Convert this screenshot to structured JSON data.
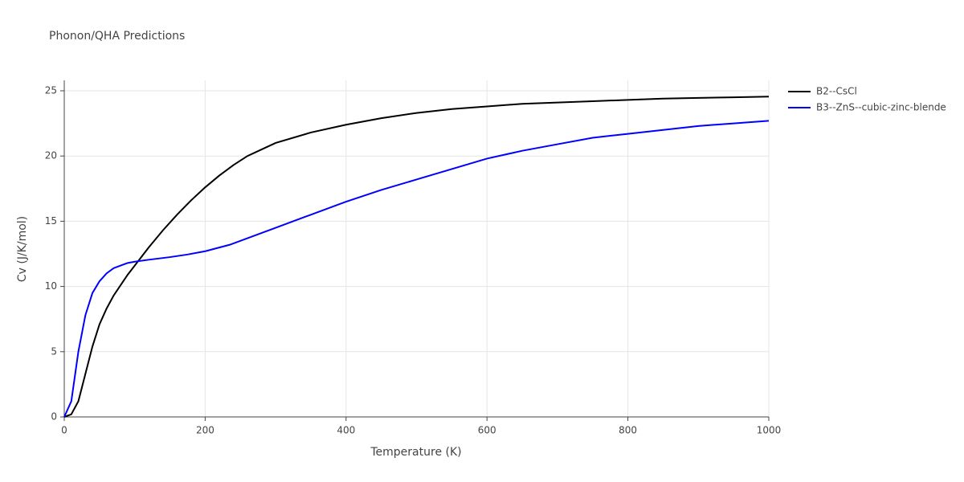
{
  "chart_data": {
    "type": "line",
    "title": "Phonon/QHA Predictions",
    "x_label": "Temperature (K)",
    "y_label": "Cv (J/K/mol)",
    "xlim": [
      0,
      1000
    ],
    "ylim": [
      0,
      25.8
    ],
    "xticks": [
      0,
      200,
      400,
      600,
      800,
      1000
    ],
    "yticks": [
      0,
      5,
      10,
      15,
      20,
      25
    ],
    "grid": true,
    "legend": "right",
    "series": [
      {
        "name": "B2--CsCl",
        "color": "#000000",
        "x": [
          0,
          10,
          20,
          30,
          40,
          50,
          60,
          70,
          80,
          90,
          100,
          120,
          140,
          160,
          180,
          200,
          220,
          240,
          260,
          280,
          300,
          350,
          400,
          450,
          500,
          550,
          600,
          650,
          700,
          750,
          800,
          850,
          900,
          950,
          1000
        ],
        "values": [
          0,
          0.2,
          1.2,
          3.3,
          5.4,
          7.1,
          8.3,
          9.3,
          10.1,
          10.9,
          11.6,
          13.0,
          14.3,
          15.5,
          16.6,
          17.6,
          18.5,
          19.3,
          20.0,
          20.5,
          21.0,
          21.8,
          22.4,
          22.9,
          23.3,
          23.6,
          23.8,
          24.0,
          24.1,
          24.2,
          24.3,
          24.4,
          24.45,
          24.5,
          24.55
        ]
      },
      {
        "name": "B3--ZnS--cubic-zinc-blende",
        "color": "#0000ff",
        "x": [
          0,
          10,
          20,
          30,
          40,
          50,
          60,
          70,
          80,
          90,
          100,
          120,
          150,
          175,
          200,
          235,
          270,
          300,
          350,
          400,
          450,
          500,
          550,
          600,
          650,
          700,
          750,
          800,
          850,
          900,
          950,
          1000
        ],
        "values": [
          0,
          1.2,
          5.0,
          7.8,
          9.5,
          10.4,
          11.0,
          11.4,
          11.6,
          11.8,
          11.9,
          12.05,
          12.25,
          12.45,
          12.7,
          13.2,
          13.9,
          14.5,
          15.5,
          16.5,
          17.4,
          18.2,
          19.0,
          19.8,
          20.4,
          20.9,
          21.4,
          21.7,
          22.0,
          22.3,
          22.5,
          22.7
        ]
      }
    ]
  }
}
